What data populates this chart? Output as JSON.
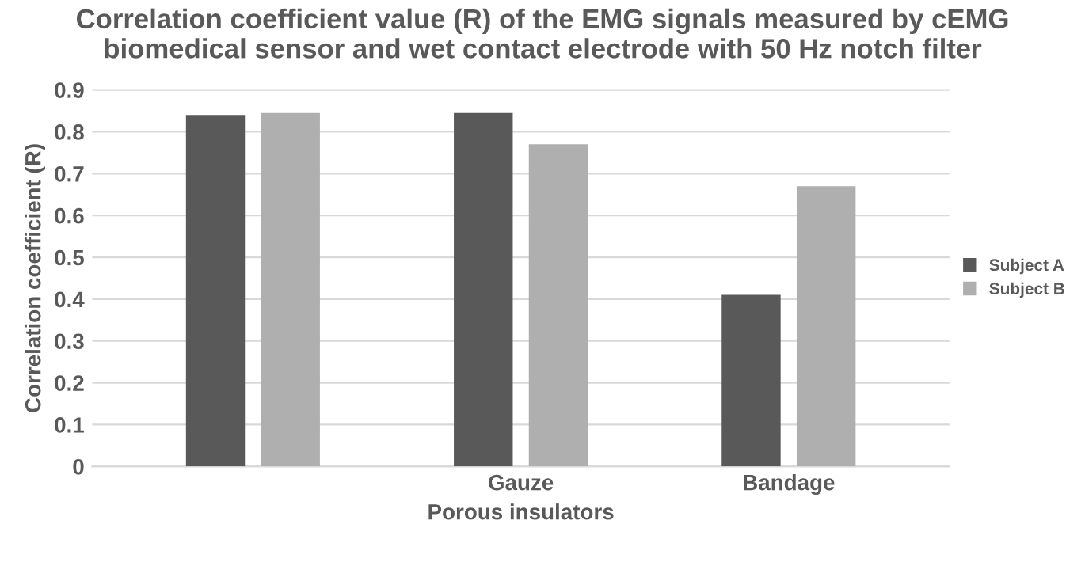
{
  "chart_data": {
    "type": "bar",
    "title": "Correlation coefficient value (R) of the EMG signals measured by cEMG biomedical sensor and wet contact electrode with 50 Hz notch filter",
    "xlabel": "Porous insulators",
    "ylabel": "Correlation coefficient (R)",
    "categories": [
      null,
      "Gauze",
      "Bandage"
    ],
    "series": [
      {
        "name": "Subject A",
        "color": "#595959",
        "values": [
          0.84,
          0.845,
          0.41
        ]
      },
      {
        "name": "Subject B",
        "color": "#afafaf",
        "values": [
          0.845,
          0.77,
          0.67
        ]
      }
    ],
    "ylim": [
      0,
      0.9
    ],
    "yticks": [
      0,
      0.1,
      0.2,
      0.3,
      0.4,
      0.5,
      0.6,
      0.7,
      0.8,
      0.9
    ],
    "grid": "y",
    "legend": "right"
  }
}
